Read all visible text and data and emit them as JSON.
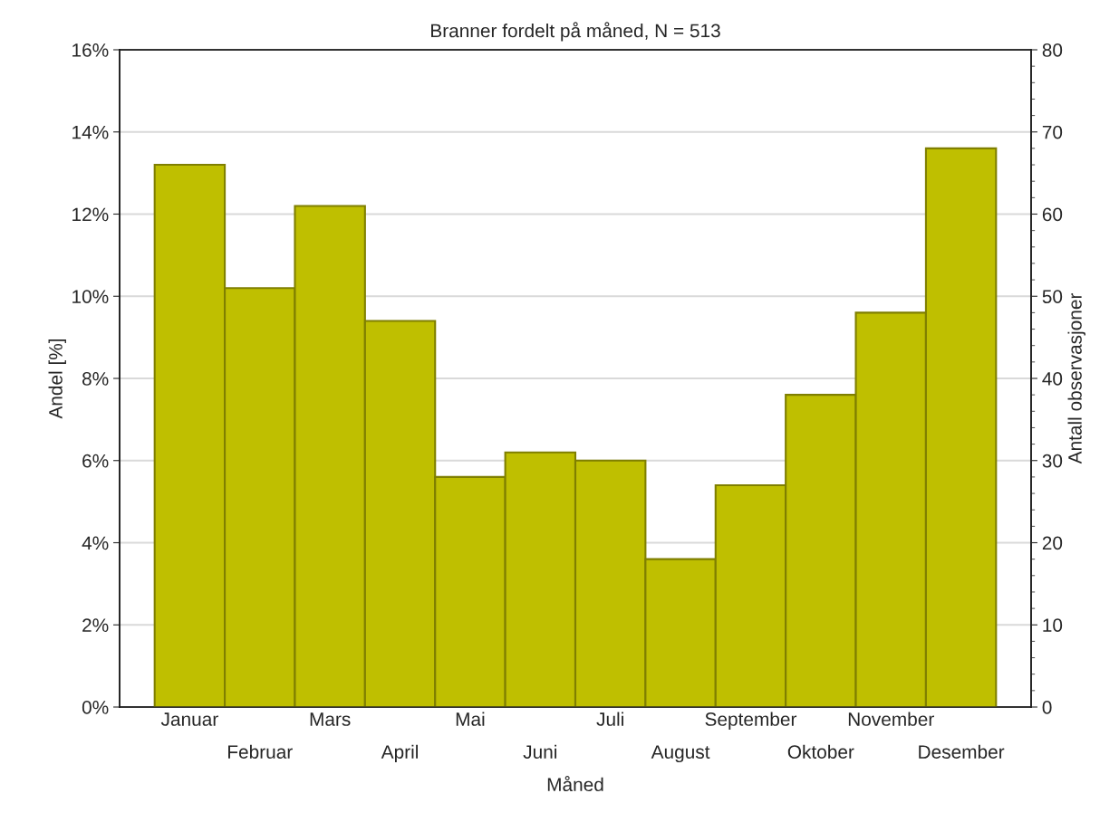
{
  "chart_data": {
    "type": "bar",
    "title": "Branner fordelt på måned, N = 513",
    "xlabel": "Måned",
    "ylabel": "Andel [%]",
    "y2label": "Antall observasjoner",
    "categories": [
      "Januar",
      "Februar",
      "Mars",
      "April",
      "Mai",
      "Juni",
      "Juli",
      "August",
      "September",
      "Oktober",
      "November",
      "Desember"
    ],
    "values": [
      13.2,
      10.2,
      12.2,
      9.4,
      5.6,
      6.2,
      6.0,
      3.6,
      5.4,
      7.6,
      9.6,
      13.6
    ],
    "color": "#bfbf00",
    "ylim": [
      0,
      16
    ],
    "yticks": [
      {
        "value": 0,
        "label": "0%"
      },
      {
        "value": 2,
        "label": "2%"
      },
      {
        "value": 4,
        "label": "4%"
      },
      {
        "value": 6,
        "label": "6%"
      },
      {
        "value": 8,
        "label": "8%"
      },
      {
        "value": 10,
        "label": "10%"
      },
      {
        "value": 12,
        "label": "12%"
      },
      {
        "value": 14,
        "label": "14%"
      },
      {
        "value": 16,
        "label": "16%"
      }
    ],
    "y2lim": [
      0,
      80
    ],
    "y2ticks": [
      0,
      10,
      20,
      30,
      40,
      50,
      60,
      70,
      80
    ],
    "grid": "y"
  }
}
